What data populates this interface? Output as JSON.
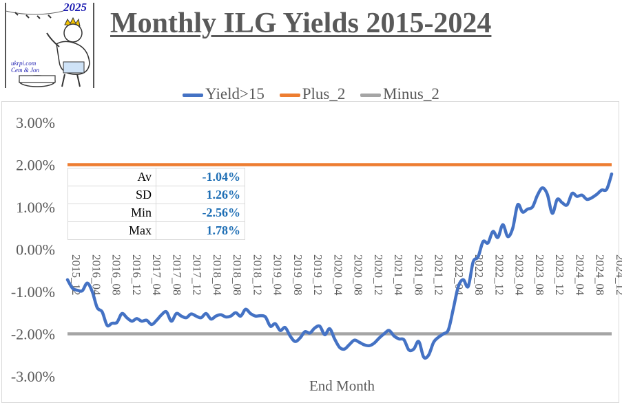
{
  "title": "Monthly ILG Yields 2015-2024",
  "logo": {
    "year": "2025",
    "site": "ukrpi.com",
    "authors": "Cem & Jon"
  },
  "chart_data": {
    "type": "line",
    "title": "Monthly ILG Yields 2015-2024",
    "xlabel": "End Month",
    "ylabel": "",
    "ylim": [
      -3.0,
      3.0
    ],
    "y_ticks": [
      "-3.00%",
      "-2.00%",
      "-1.00%",
      "0.00%",
      "1.00%",
      "2.00%",
      "3.00%"
    ],
    "y_tick_values": [
      -3,
      -2,
      -1,
      0,
      1,
      2,
      3
    ],
    "x_start": "2015_12",
    "x_end": "2024_12",
    "x_ticks": [
      "2015_12",
      "2016_04",
      "2016_08",
      "2016_12",
      "2017_04",
      "2017_08",
      "2017_12",
      "2018_04",
      "2018_08",
      "2018_12",
      "2019_04",
      "2019_08",
      "2019_12",
      "2020_04",
      "2020_08",
      "2020_12",
      "2021_04",
      "2021_08",
      "2021_12",
      "2022_04",
      "2022_08",
      "2022_12",
      "2023_04",
      "2023_08",
      "2023_12",
      "2024_04",
      "2024_08",
      "2024_12"
    ],
    "legend_position": "top",
    "grid": false,
    "series": [
      {
        "name": "Yield>15",
        "color": "#4472c4",
        "values": [
          -0.72,
          -0.92,
          -0.97,
          -0.98,
          -0.8,
          -1.0,
          -1.38,
          -1.48,
          -1.8,
          -1.75,
          -1.73,
          -1.52,
          -1.62,
          -1.7,
          -1.64,
          -1.7,
          -1.68,
          -1.78,
          -1.68,
          -1.55,
          -1.48,
          -1.7,
          -1.52,
          -1.58,
          -1.62,
          -1.53,
          -1.58,
          -1.62,
          -1.52,
          -1.65,
          -1.58,
          -1.55,
          -1.6,
          -1.58,
          -1.5,
          -1.58,
          -1.42,
          -1.52,
          -1.58,
          -1.57,
          -1.6,
          -1.82,
          -1.76,
          -1.92,
          -1.85,
          -2.05,
          -2.18,
          -2.1,
          -1.95,
          -1.98,
          -1.86,
          -1.82,
          -2.02,
          -1.88,
          -2.12,
          -2.32,
          -2.36,
          -2.25,
          -2.15,
          -2.2,
          -2.26,
          -2.28,
          -2.22,
          -2.1,
          -2.0,
          -1.92,
          -2.05,
          -2.12,
          -2.14,
          -2.38,
          -2.36,
          -2.18,
          -2.55,
          -2.5,
          -2.2,
          -2.08,
          -2.0,
          -1.9,
          -1.4,
          -0.88,
          -0.72,
          -0.88,
          -0.3,
          -0.18,
          0.18,
          0.15,
          0.42,
          0.28,
          0.58,
          0.3,
          0.5,
          1.05,
          0.88,
          0.95,
          1.0,
          1.28,
          1.45,
          1.3,
          0.85,
          1.18,
          1.1,
          1.05,
          1.32,
          1.25,
          1.28,
          1.18,
          1.22,
          1.3,
          1.4,
          1.42,
          1.78
        ]
      },
      {
        "name": "Plus_2",
        "color": "#ed7d31",
        "constant": 2.0
      },
      {
        "name": "Minus_2",
        "color": "#a5a5a5",
        "constant": -2.0
      }
    ]
  },
  "stats": [
    {
      "label": "Av",
      "value": "-1.04%"
    },
    {
      "label": "SD",
      "value": "1.26%"
    },
    {
      "label": "Min",
      "value": "-2.56%"
    },
    {
      "label": "Max",
      "value": "1.78%"
    }
  ]
}
